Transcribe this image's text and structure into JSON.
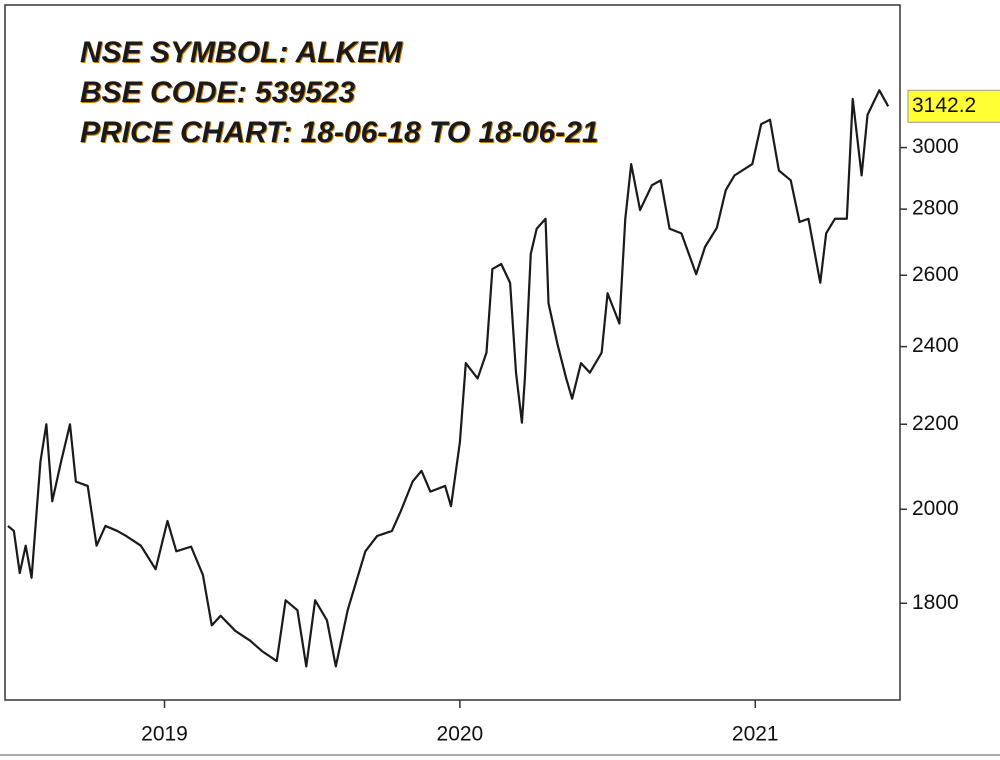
{
  "chart_data": {
    "type": "line",
    "title_lines": [
      "NSE SYMBOL: ALKEM",
      "BSE CODE: 539523",
      "PRICE CHART: 18-06-18 TO 18-06-21"
    ],
    "color": "#1a1a1a",
    "log_scale": true,
    "xlim": [
      2018.46,
      2021.49
    ],
    "xticks": [
      2019,
      2020,
      2021
    ],
    "ylim": [
      1615,
      3520
    ],
    "yticks": [
      1800,
      2000,
      2200,
      2400,
      2600,
      2800,
      3000
    ],
    "x": [
      2018.47,
      2018.49,
      2018.51,
      2018.53,
      2018.55,
      2018.58,
      2018.6,
      2018.62,
      2018.65,
      2018.68,
      2018.7,
      2018.74,
      2018.77,
      2018.8,
      2018.84,
      2018.87,
      2018.92,
      2018.97,
      2019.01,
      2019.04,
      2019.09,
      2019.13,
      2019.16,
      2019.19,
      2019.24,
      2019.29,
      2019.33,
      2019.38,
      2019.41,
      2019.45,
      2019.48,
      2019.51,
      2019.55,
      2019.58,
      2019.62,
      2019.65,
      2019.68,
      2019.72,
      2019.77,
      2019.8,
      2019.84,
      2019.87,
      2019.9,
      2019.95,
      2019.97,
      2020.0,
      2020.02,
      2020.06,
      2020.09,
      2020.11,
      2020.14,
      2020.17,
      2020.19,
      2020.21,
      2020.22,
      2020.24,
      2020.26,
      2020.29,
      2020.3,
      2020.33,
      2020.36,
      2020.38,
      2020.41,
      2020.44,
      2020.48,
      2020.5,
      2020.54,
      2020.56,
      2020.58,
      2020.61,
      2020.65,
      2020.68,
      2020.71,
      2020.75,
      2020.8,
      2020.83,
      2020.87,
      2020.9,
      2020.93,
      2020.99,
      2021.02,
      2021.05,
      2021.08,
      2021.12,
      2021.15,
      2021.18,
      2021.22,
      2021.24,
      2021.27,
      2021.31,
      2021.33,
      2021.36,
      2021.38,
      2021.42,
      2021.45
    ],
    "values": [
      1963,
      1952,
      1862,
      1920,
      1852,
      2110,
      2200,
      2018,
      2110,
      2200,
      2063,
      2053,
      1920,
      1963,
      1952,
      1941,
      1920,
      1870,
      1974,
      1908,
      1918,
      1858,
      1756,
      1775,
      1745,
      1726,
      1706,
      1687,
      1806,
      1786,
      1677,
      1806,
      1766,
      1677,
      1786,
      1846,
      1908,
      1941,
      1952,
      1996,
      2063,
      2088,
      2040,
      2053,
      2007,
      2156,
      2356,
      2316,
      2384,
      2618,
      2633,
      2578,
      2331,
      2204,
      2316,
      2663,
      2739,
      2770,
      2520,
      2408,
      2316,
      2264,
      2356,
      2331,
      2384,
      2548,
      2463,
      2770,
      2945,
      2797,
      2876,
      2892,
      2739,
      2725,
      2603,
      2684,
      2742,
      2860,
      2908,
      2945,
      3080,
      3095,
      2924,
      2892,
      2760,
      2770,
      2578,
      2725,
      2770,
      2770,
      3168,
      2908,
      3112,
      3199,
      3142.2
    ]
  }
}
